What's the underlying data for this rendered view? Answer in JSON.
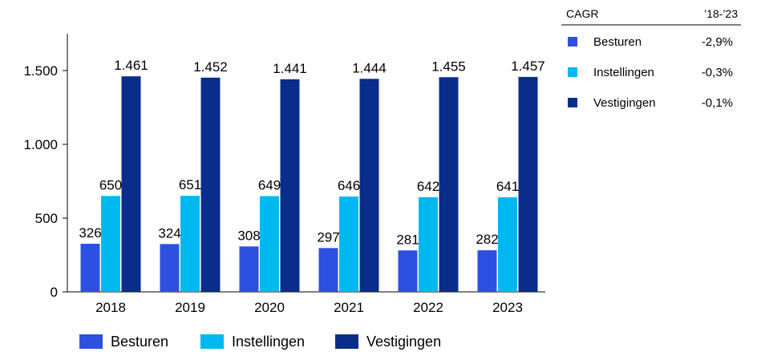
{
  "chart_data": {
    "type": "bar",
    "categories": [
      "2018",
      "2019",
      "2020",
      "2021",
      "2022",
      "2023"
    ],
    "series": [
      {
        "name": "Besturen",
        "color": "#2E50E0",
        "values": [
          326,
          324,
          308,
          297,
          281,
          282
        ],
        "labels": [
          "326",
          "324",
          "308",
          "297",
          "281",
          "282"
        ]
      },
      {
        "name": "Instellingen",
        "color": "#00B8F0",
        "values": [
          650,
          651,
          649,
          646,
          642,
          641
        ],
        "labels": [
          "650",
          "651",
          "649",
          "646",
          "642",
          "641"
        ]
      },
      {
        "name": "Vestigingen",
        "color": "#0A2D8C",
        "values": [
          1461,
          1452,
          1441,
          1444,
          1455,
          1457
        ],
        "labels": [
          "1.461",
          "1.452",
          "1.441",
          "1.444",
          "1.455",
          "1.457"
        ]
      }
    ],
    "ylim": [
      0,
      1750
    ],
    "yticks": [
      0,
      500,
      1000,
      1500
    ],
    "ytick_labels": [
      "0",
      "500",
      "1.000",
      "1.500"
    ],
    "grid": false,
    "legend_position": "bottom",
    "cagr_table": {
      "header_left": "CAGR",
      "header_right": "’18-’23",
      "rows": [
        {
          "name": "Besturen",
          "value": "-2,9%"
        },
        {
          "name": "Instellingen",
          "value": "-0,3%"
        },
        {
          "name": "Vestigingen",
          "value": "-0,1%"
        }
      ]
    }
  }
}
